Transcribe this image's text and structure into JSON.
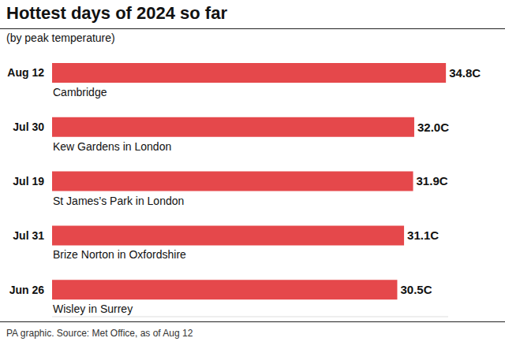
{
  "chart_data": {
    "type": "bar",
    "title": "Hottest days of 2024 so far",
    "subtitle": "(by peak temperature)",
    "categories": [
      "Aug 12",
      "Jul 30",
      "Jul 19",
      "Jul 31",
      "Jun 26"
    ],
    "locations": [
      "Cambridge",
      "Kew Gardens in London",
      "St James’s Park in London",
      "Brize Norton in Oxfordshire",
      "Wisley in Surrey"
    ],
    "values": [
      34.8,
      32.0,
      31.9,
      31.1,
      30.5
    ],
    "value_labels": [
      "34.8C",
      "32.0C",
      "31.9C",
      "31.1C",
      "30.5C"
    ],
    "color": "#e5484b",
    "orientation": "horizontal",
    "data_labels": true,
    "tick_labels": "y",
    "grid": false,
    "xlim": [
      0,
      35
    ],
    "xticks": [],
    "source": "PA graphic. Source: Met Office, as of Aug 12"
  }
}
